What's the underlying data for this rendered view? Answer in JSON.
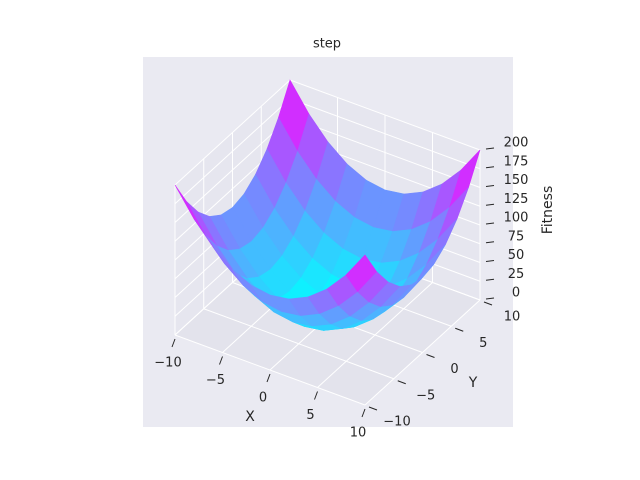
{
  "chart_data": {
    "type": "surface",
    "title": "step",
    "xlabel": "X",
    "ylabel": "Y",
    "zlabel": "Fitness",
    "x": [
      -10,
      -8,
      -6,
      -4,
      -2,
      0,
      2,
      4,
      6,
      8,
      10
    ],
    "y": [
      -10,
      -8,
      -6,
      -4,
      -2,
      0,
      2,
      4,
      6,
      8,
      10
    ],
    "z": [
      [
        200,
        164,
        136,
        116,
        104,
        100,
        104,
        116,
        136,
        164,
        200
      ],
      [
        164,
        128,
        100,
        80,
        68,
        64,
        68,
        80,
        100,
        128,
        164
      ],
      [
        136,
        100,
        72,
        52,
        40,
        36,
        40,
        52,
        72,
        100,
        136
      ],
      [
        116,
        80,
        52,
        32,
        20,
        16,
        20,
        32,
        52,
        80,
        116
      ],
      [
        104,
        68,
        40,
        20,
        8,
        4,
        8,
        20,
        40,
        68,
        104
      ],
      [
        100,
        64,
        36,
        16,
        4,
        0,
        4,
        16,
        36,
        64,
        100
      ],
      [
        104,
        68,
        40,
        20,
        8,
        4,
        8,
        20,
        40,
        68,
        104
      ],
      [
        116,
        80,
        52,
        32,
        20,
        16,
        20,
        32,
        52,
        80,
        116
      ],
      [
        136,
        100,
        72,
        52,
        40,
        36,
        40,
        52,
        72,
        100,
        136
      ],
      [
        164,
        128,
        100,
        80,
        68,
        64,
        68,
        80,
        100,
        128,
        164
      ],
      [
        200,
        164,
        136,
        116,
        104,
        100,
        104,
        116,
        136,
        164,
        200
      ]
    ],
    "colormap": [
      "#00ffff",
      "#ff00ff"
    ],
    "xlim": [
      -10,
      10
    ],
    "ylim": [
      -10,
      10
    ],
    "zlim": [
      0,
      200
    ],
    "xticks": [
      {
        "value": -10,
        "label": "−10"
      },
      {
        "value": -5,
        "label": "−5"
      },
      0,
      5,
      10
    ],
    "yticks": [
      {
        "value": -10,
        "label": "−10"
      },
      {
        "value": -5,
        "label": "−5"
      },
      0,
      5,
      10
    ],
    "zticks": [
      0,
      25,
      50,
      75,
      100,
      125,
      150,
      175,
      200
    ],
    "grid": true
  }
}
